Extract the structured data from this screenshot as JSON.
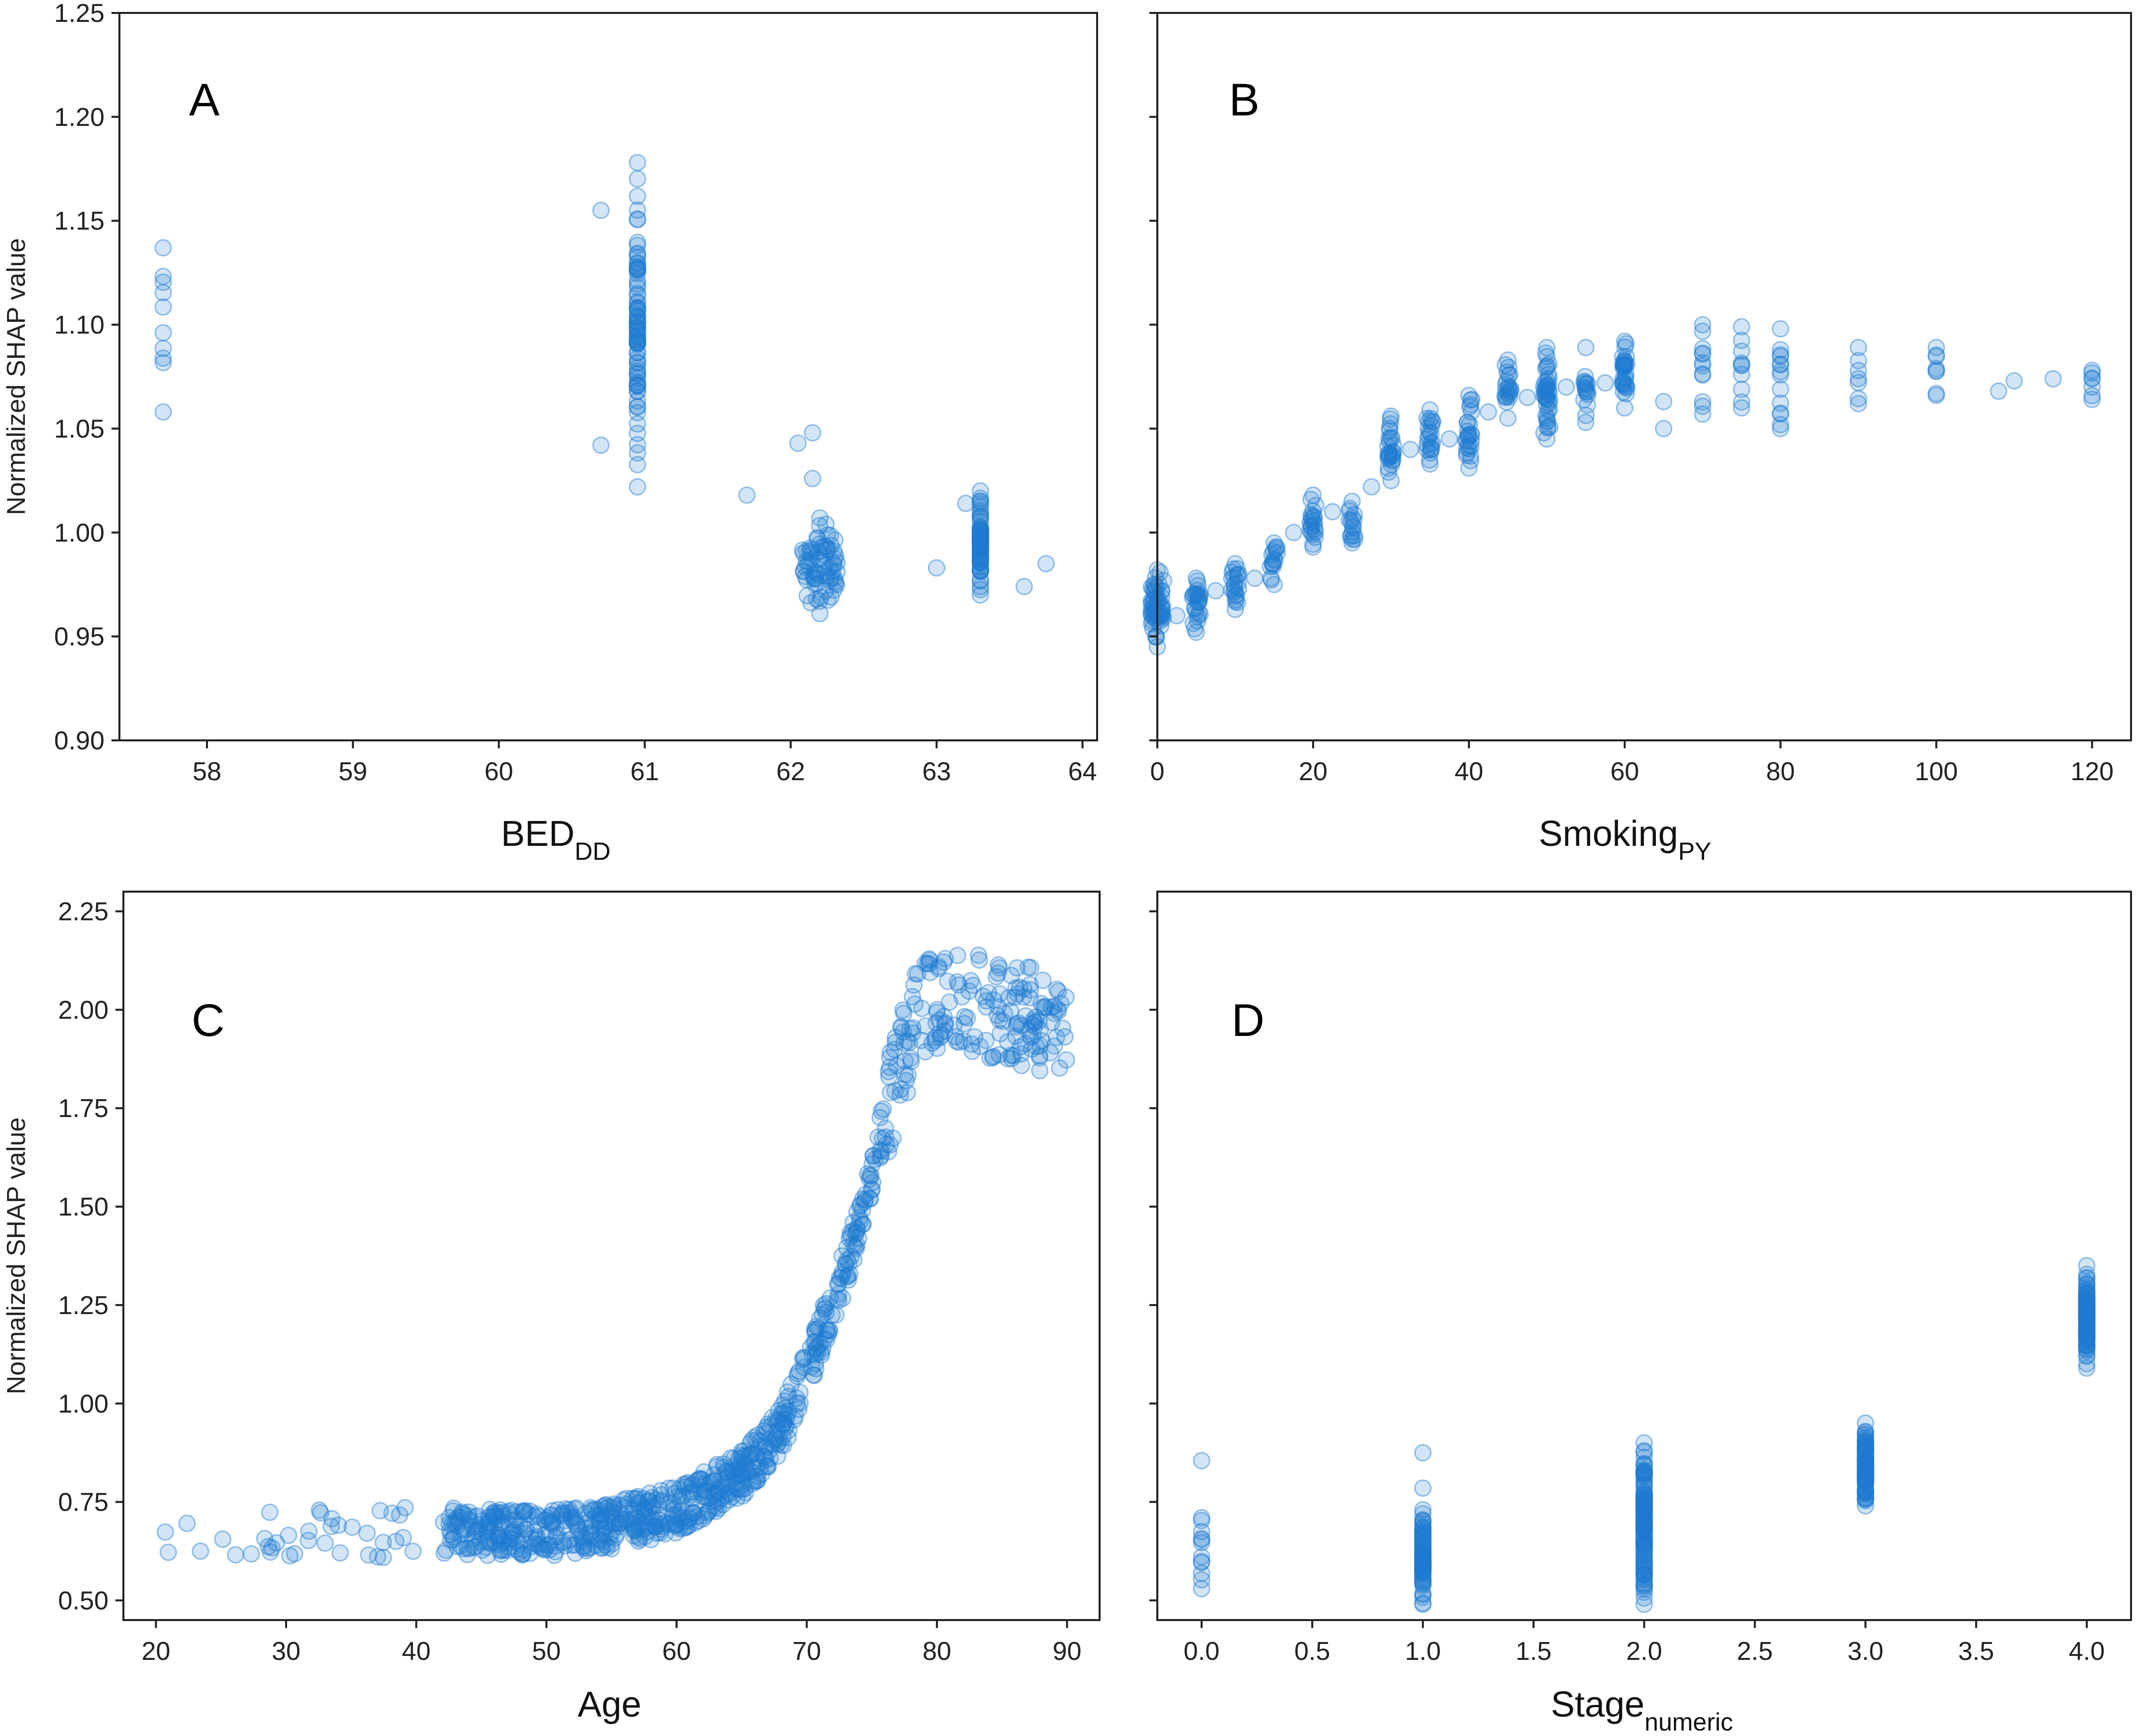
{
  "chart_data": [
    {
      "type": "scatter",
      "panel": "A",
      "xlabel": "BED",
      "xlabel_sub": "DD",
      "ylabel": "Normalized SHAP value",
      "xlim": [
        57.4,
        64.1
      ],
      "ylim": [
        0.9,
        1.25
      ],
      "xticks": [
        58,
        59,
        60,
        61,
        62,
        63,
        64
      ],
      "yticks": [
        0.9,
        0.95,
        1.0,
        1.05,
        1.1,
        1.15,
        1.2,
        1.25
      ],
      "ytick_labels": [
        "0.90",
        "0.95",
        "1.00",
        "1.05",
        "1.10",
        "1.15",
        "1.20",
        "1.25"
      ],
      "clusters": [
        {
          "x": 57.7,
          "y_min": 1.058,
          "y_max": 1.137,
          "n": 8,
          "jitter": 0.0
        },
        {
          "x": 60.95,
          "y_min": 1.022,
          "y_max": 1.178,
          "n": 80,
          "jitter": 0.0
        },
        {
          "x": 62.2,
          "y_min": 0.961,
          "y_max": 1.007,
          "n": 70,
          "jitter": 0.12
        },
        {
          "x": 63.3,
          "y_min": 0.97,
          "y_max": 1.02,
          "n": 70,
          "jitter": 0.0
        }
      ],
      "points": [
        [
          60.7,
          1.155
        ],
        [
          60.7,
          1.042
        ],
        [
          61.7,
          1.018
        ],
        [
          62.05,
          1.043
        ],
        [
          62.15,
          1.048
        ],
        [
          62.15,
          1.026
        ],
        [
          63.0,
          0.983
        ],
        [
          63.2,
          1.014
        ],
        [
          63.6,
          0.974
        ],
        [
          63.75,
          0.985
        ]
      ],
      "series_color": "#1f7bd1"
    },
    {
      "type": "scatter",
      "panel": "B",
      "xlabel": "Smoking",
      "xlabel_sub": "PY",
      "ylabel": "",
      "xlim": [
        0,
        125
      ],
      "ylim": [
        0.9,
        1.25
      ],
      "xticks": [
        0,
        20,
        40,
        60,
        80,
        100,
        120
      ],
      "yticks": [
        0.9,
        0.95,
        1.0,
        1.05,
        1.1,
        1.15,
        1.2,
        1.25
      ],
      "clusters": [
        {
          "x": 0,
          "y_min": 0.945,
          "y_max": 0.982,
          "n": 60,
          "jitter": 0.8
        },
        {
          "x": 5,
          "y_min": 0.952,
          "y_max": 0.978,
          "n": 25,
          "jitter": 0.5
        },
        {
          "x": 10,
          "y_min": 0.963,
          "y_max": 0.985,
          "n": 20,
          "jitter": 0.5
        },
        {
          "x": 15,
          "y_min": 0.975,
          "y_max": 0.995,
          "n": 15,
          "jitter": 0.5
        },
        {
          "x": 20,
          "y_min": 0.993,
          "y_max": 1.018,
          "n": 20,
          "jitter": 0.4
        },
        {
          "x": 25,
          "y_min": 0.995,
          "y_max": 1.015,
          "n": 15,
          "jitter": 0.4
        },
        {
          "x": 30,
          "y_min": 1.025,
          "y_max": 1.056,
          "n": 25,
          "jitter": 0.4
        },
        {
          "x": 35,
          "y_min": 1.033,
          "y_max": 1.059,
          "n": 20,
          "jitter": 0.4
        },
        {
          "x": 40,
          "y_min": 1.031,
          "y_max": 1.066,
          "n": 25,
          "jitter": 0.4
        },
        {
          "x": 45,
          "y_min": 1.055,
          "y_max": 1.083,
          "n": 20,
          "jitter": 0.4
        },
        {
          "x": 50,
          "y_min": 1.045,
          "y_max": 1.089,
          "n": 40,
          "jitter": 0.4
        },
        {
          "x": 55,
          "y_min": 1.053,
          "y_max": 1.089,
          "n": 15,
          "jitter": 0.3
        },
        {
          "x": 60,
          "y_min": 1.06,
          "y_max": 1.092,
          "n": 30,
          "jitter": 0.3
        },
        {
          "x": 70,
          "y_min": 1.057,
          "y_max": 1.1,
          "n": 10,
          "jitter": 0.0
        },
        {
          "x": 75,
          "y_min": 1.06,
          "y_max": 1.099,
          "n": 8,
          "jitter": 0.0
        },
        {
          "x": 80,
          "y_min": 1.05,
          "y_max": 1.098,
          "n": 12,
          "jitter": 0.0
        },
        {
          "x": 90,
          "y_min": 1.062,
          "y_max": 1.089,
          "n": 5,
          "jitter": 0.0
        },
        {
          "x": 100,
          "y_min": 1.066,
          "y_max": 1.089,
          "n": 6,
          "jitter": 0.0
        },
        {
          "x": 120,
          "y_min": 1.064,
          "y_max": 1.078,
          "n": 5,
          "jitter": 0.0
        }
      ],
      "points": [
        [
          2.5,
          0.96
        ],
        [
          7.5,
          0.972
        ],
        [
          12.5,
          0.978
        ],
        [
          17.5,
          1.0
        ],
        [
          22.5,
          1.01
        ],
        [
          27.5,
          1.022
        ],
        [
          32.5,
          1.04
        ],
        [
          37.5,
          1.045
        ],
        [
          42.5,
          1.058
        ],
        [
          47.5,
          1.065
        ],
        [
          52.5,
          1.07
        ],
        [
          57.5,
          1.072
        ],
        [
          65,
          1.05
        ],
        [
          65,
          1.063
        ],
        [
          108,
          1.068
        ],
        [
          110,
          1.073
        ],
        [
          115,
          1.074
        ]
      ],
      "series_color": "#1f7bd1"
    },
    {
      "type": "scatter",
      "panel": "C",
      "xlabel": "Age",
      "xlabel_sub": "",
      "ylabel": "Normalized SHAP value",
      "xlim": [
        17.5,
        92.5
      ],
      "ylim": [
        0.45,
        2.3
      ],
      "xticks": [
        20,
        30,
        40,
        50,
        60,
        70,
        80,
        90
      ],
      "yticks": [
        0.5,
        0.75,
        1.0,
        1.25,
        1.5,
        1.75,
        2.0,
        2.25
      ],
      "ytick_labels": [
        "0.50",
        "0.75",
        "1.00",
        "1.25",
        "1.50",
        "1.75",
        "2.00",
        "2.25"
      ],
      "trend": [
        [
          20,
          0.64
        ],
        [
          40,
          0.68
        ],
        [
          50,
          0.67
        ],
        [
          55,
          0.69
        ],
        [
          60,
          0.73
        ],
        [
          65,
          0.82
        ],
        [
          68,
          0.93
        ],
        [
          70,
          1.08
        ],
        [
          72,
          1.25
        ],
        [
          74,
          1.45
        ],
        [
          76,
          1.72
        ],
        [
          78,
          1.95
        ],
        [
          80,
          2.03
        ],
        [
          85,
          2.0
        ],
        [
          90,
          1.95
        ]
      ],
      "n_points": 900,
      "series_color": "#1f7bd1"
    },
    {
      "type": "scatter",
      "panel": "D",
      "xlabel": "Stage",
      "xlabel_sub": "numeric",
      "ylabel": "",
      "xlim": [
        -0.2,
        4.2
      ],
      "ylim": [
        0.45,
        2.3
      ],
      "xticks": [
        0.0,
        0.5,
        1.0,
        1.5,
        2.0,
        2.5,
        3.0,
        3.5,
        4.0
      ],
      "xtick_labels": [
        "0.0",
        "0.5",
        "1.0",
        "1.5",
        "2.0",
        "2.5",
        "3.0",
        "3.5",
        "4.0"
      ],
      "yticks": [
        0.5,
        0.75,
        1.0,
        1.25,
        1.5,
        1.75,
        2.0,
        2.25
      ],
      "clusters": [
        {
          "x": 0.0,
          "y_min": 0.53,
          "y_max": 0.71,
          "n": 10,
          "jitter": 0.0
        },
        {
          "x": 1.0,
          "y_min": 0.49,
          "y_max": 0.73,
          "n": 80,
          "jitter": 0.0
        },
        {
          "x": 2.0,
          "y_min": 0.49,
          "y_max": 0.9,
          "n": 140,
          "jitter": 0.0
        },
        {
          "x": 3.0,
          "y_min": 0.74,
          "y_max": 0.95,
          "n": 90,
          "jitter": 0.0
        },
        {
          "x": 4.0,
          "y_min": 1.09,
          "y_max": 1.35,
          "n": 110,
          "jitter": 0.0
        }
      ],
      "points": [
        [
          0.0,
          0.855
        ],
        [
          1.0,
          0.785
        ],
        [
          1.0,
          0.875
        ]
      ],
      "series_color": "#1f7bd1"
    }
  ]
}
